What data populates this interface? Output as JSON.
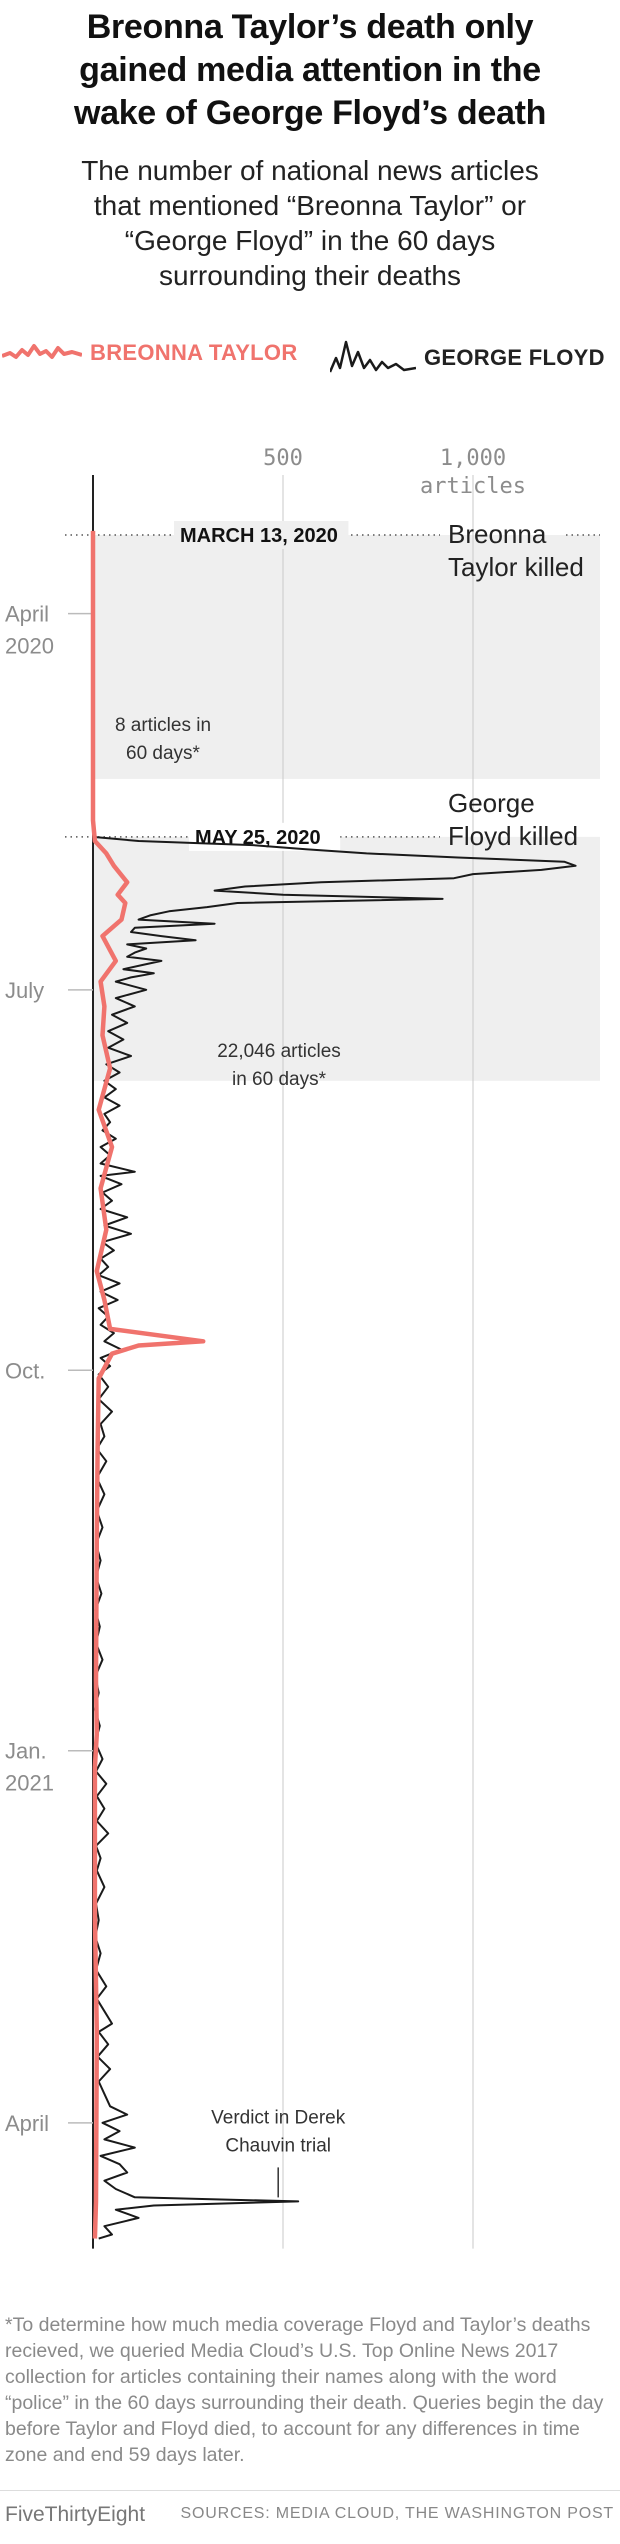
{
  "header": {
    "title_lines": [
      "Breonna Taylor’s death only",
      "gained media attention in the",
      "wake of George Floyd’s death"
    ],
    "subtitle_lines": [
      "The number of national news articles",
      "that mentioned “Breonna Taylor” or",
      "“George Floyd” in the 60 days",
      "surrounding their deaths"
    ]
  },
  "legend": {
    "taylor": "BREONNA TAYLOR",
    "floyd": "GEORGE FLOYD"
  },
  "colors": {
    "taylor": "#f0736d",
    "floyd": "#1a1a1a",
    "shade": "#efefef",
    "grid": "#c8c8c8",
    "axis_text": "#8c8c8c"
  },
  "chart_data": {
    "type": "line",
    "orientation": "vertical-time",
    "x_axis": {
      "label": "articles",
      "ticks": [
        500,
        1000
      ],
      "tick_labels": [
        "500",
        "1,000"
      ],
      "range": [
        0,
        1000
      ]
    },
    "y_axis": {
      "range": [
        "2020-03-13",
        "2021-04-29"
      ],
      "tick_dates": [
        "2020-04-01",
        "2020-07-01",
        "2020-10-01",
        "2021-01-01",
        "2021-04-01"
      ],
      "tick_labels": [
        [
          "April",
          "2020"
        ],
        [
          "July"
        ],
        [
          "Oct."
        ],
        [
          "Jan.",
          "2021"
        ],
        [
          "April"
        ]
      ]
    },
    "events": [
      {
        "date": "2020-03-13",
        "label": "MARCH 13, 2020",
        "note": [
          "Breonna",
          "Taylor killed"
        ],
        "window_end": "2020-05-11",
        "total": [
          "8 articles in",
          "60 days*"
        ]
      },
      {
        "date": "2020-05-25",
        "label": "MAY 25, 2020",
        "note": [
          "George",
          "Floyd killed"
        ],
        "window_end": "2020-07-23",
        "total": [
          "22,046 articles",
          "in 60 days*"
        ]
      }
    ],
    "annotation": {
      "date": "2021-04-20",
      "text": [
        "Verdict in Derek",
        "Chauvin trial"
      ]
    },
    "series": [
      {
        "name": "BREONNA TAYLOR",
        "points": [
          [
            "2020-03-12",
            0
          ],
          [
            "2020-05-21",
            0
          ],
          [
            "2020-05-26",
            5
          ],
          [
            "2020-05-29",
            35
          ],
          [
            "2020-06-01",
            55
          ],
          [
            "2020-06-05",
            90
          ],
          [
            "2020-06-08",
            65
          ],
          [
            "2020-06-10",
            85
          ],
          [
            "2020-06-14",
            75
          ],
          [
            "2020-06-18",
            25
          ],
          [
            "2020-06-24",
            60
          ],
          [
            "2020-06-29",
            20
          ],
          [
            "2020-07-05",
            30
          ],
          [
            "2020-07-12",
            25
          ],
          [
            "2020-07-20",
            45
          ],
          [
            "2020-07-30",
            15
          ],
          [
            "2020-08-08",
            50
          ],
          [
            "2020-08-18",
            20
          ],
          [
            "2020-08-28",
            35
          ],
          [
            "2020-09-07",
            10
          ],
          [
            "2020-09-14",
            30
          ],
          [
            "2020-09-21",
            45
          ],
          [
            "2020-09-24",
            290
          ],
          [
            "2020-09-25",
            120
          ],
          [
            "2020-09-27",
            50
          ],
          [
            "2020-10-03",
            15
          ],
          [
            "2020-10-20",
            12
          ],
          [
            "2020-11-10",
            10
          ],
          [
            "2020-12-15",
            8
          ],
          [
            "2020-12-28",
            10
          ],
          [
            "2021-01-05",
            5
          ],
          [
            "2021-02-10",
            5
          ],
          [
            "2021-03-10",
            10
          ],
          [
            "2021-04-20",
            8
          ],
          [
            "2021-04-29",
            5
          ]
        ]
      },
      {
        "name": "GEORGE FLOYD",
        "points": [
          [
            "2020-03-12",
            0
          ],
          [
            "2020-05-25",
            0
          ],
          [
            "2020-05-26",
            120
          ],
          [
            "2020-05-27",
            420
          ],
          [
            "2020-05-28",
            560
          ],
          [
            "2020-05-29",
            720
          ],
          [
            "2020-05-30",
            960
          ],
          [
            "2020-05-31",
            1240
          ],
          [
            "2020-06-01",
            1270
          ],
          [
            "2020-06-02",
            1180
          ],
          [
            "2020-06-03",
            1000
          ],
          [
            "2020-06-04",
            950
          ],
          [
            "2020-06-05",
            600
          ],
          [
            "2020-06-06",
            400
          ],
          [
            "2020-06-07",
            320
          ],
          [
            "2020-06-08",
            500
          ],
          [
            "2020-06-09",
            920
          ],
          [
            "2020-06-10",
            380
          ],
          [
            "2020-06-11",
            300
          ],
          [
            "2020-06-12",
            200
          ],
          [
            "2020-06-13",
            150
          ],
          [
            "2020-06-14",
            120
          ],
          [
            "2020-06-15",
            320
          ],
          [
            "2020-06-16",
            110
          ],
          [
            "2020-06-17",
            100
          ],
          [
            "2020-06-18",
            180
          ],
          [
            "2020-06-19",
            270
          ],
          [
            "2020-06-20",
            90
          ],
          [
            "2020-06-21",
            140
          ],
          [
            "2020-06-22",
            110
          ],
          [
            "2020-06-23",
            90
          ],
          [
            "2020-06-24",
            180
          ],
          [
            "2020-06-25",
            130
          ],
          [
            "2020-06-26",
            80
          ],
          [
            "2020-06-27",
            160
          ],
          [
            "2020-06-28",
            100
          ],
          [
            "2020-06-29",
            60
          ],
          [
            "2020-07-01",
            140
          ],
          [
            "2020-07-03",
            60
          ],
          [
            "2020-07-05",
            110
          ],
          [
            "2020-07-07",
            50
          ],
          [
            "2020-07-09",
            90
          ],
          [
            "2020-07-11",
            40
          ],
          [
            "2020-07-13",
            80
          ],
          [
            "2020-07-15",
            40
          ],
          [
            "2020-07-17",
            100
          ],
          [
            "2020-07-19",
            35
          ],
          [
            "2020-07-21",
            70
          ],
          [
            "2020-07-23",
            30
          ],
          [
            "2020-07-25",
            60
          ],
          [
            "2020-07-27",
            30
          ],
          [
            "2020-07-29",
            70
          ],
          [
            "2020-07-31",
            30
          ],
          [
            "2020-08-02",
            45
          ],
          [
            "2020-08-04",
            25
          ],
          [
            "2020-08-06",
            60
          ],
          [
            "2020-08-08",
            20
          ],
          [
            "2020-08-10",
            45
          ],
          [
            "2020-08-12",
            20
          ],
          [
            "2020-08-14",
            110
          ],
          [
            "2020-08-15",
            20
          ],
          [
            "2020-08-17",
            75
          ],
          [
            "2020-08-19",
            25
          ],
          [
            "2020-08-21",
            50
          ],
          [
            "2020-08-23",
            20
          ],
          [
            "2020-08-25",
            90
          ],
          [
            "2020-08-27",
            30
          ],
          [
            "2020-08-29",
            100
          ],
          [
            "2020-08-31",
            25
          ],
          [
            "2020-09-02",
            55
          ],
          [
            "2020-09-04",
            20
          ],
          [
            "2020-09-06",
            40
          ],
          [
            "2020-09-08",
            15
          ],
          [
            "2020-09-10",
            70
          ],
          [
            "2020-09-12",
            20
          ],
          [
            "2020-09-14",
            65
          ],
          [
            "2020-09-16",
            15
          ],
          [
            "2020-09-18",
            40
          ],
          [
            "2020-09-20",
            20
          ],
          [
            "2020-09-22",
            55
          ],
          [
            "2020-09-24",
            30
          ],
          [
            "2020-09-26",
            75
          ],
          [
            "2020-09-28",
            20
          ],
          [
            "2020-09-30",
            45
          ],
          [
            "2020-10-02",
            15
          ],
          [
            "2020-10-05",
            40
          ],
          [
            "2020-10-08",
            15
          ],
          [
            "2020-10-11",
            50
          ],
          [
            "2020-10-14",
            20
          ],
          [
            "2020-10-17",
            30
          ],
          [
            "2020-10-20",
            10
          ],
          [
            "2020-10-23",
            35
          ],
          [
            "2020-10-27",
            10
          ],
          [
            "2020-10-31",
            30
          ],
          [
            "2020-11-04",
            10
          ],
          [
            "2020-11-08",
            25
          ],
          [
            "2020-11-12",
            8
          ],
          [
            "2020-11-16",
            20
          ],
          [
            "2020-11-20",
            8
          ],
          [
            "2020-11-24",
            22
          ],
          [
            "2020-11-28",
            6
          ],
          [
            "2020-12-02",
            18
          ],
          [
            "2020-12-06",
            8
          ],
          [
            "2020-12-10",
            25
          ],
          [
            "2020-12-14",
            6
          ],
          [
            "2020-12-18",
            15
          ],
          [
            "2020-12-22",
            5
          ],
          [
            "2020-12-26",
            18
          ],
          [
            "2020-12-30",
            6
          ],
          [
            "2021-01-03",
            25
          ],
          [
            "2021-01-06",
            8
          ],
          [
            "2021-01-09",
            35
          ],
          [
            "2021-01-12",
            10
          ],
          [
            "2021-01-15",
            30
          ],
          [
            "2021-01-18",
            10
          ],
          [
            "2021-01-21",
            40
          ],
          [
            "2021-01-24",
            8
          ],
          [
            "2021-01-27",
            20
          ],
          [
            "2021-01-30",
            10
          ],
          [
            "2021-02-03",
            30
          ],
          [
            "2021-02-07",
            8
          ],
          [
            "2021-02-11",
            15
          ],
          [
            "2021-02-15",
            6
          ],
          [
            "2021-02-19",
            20
          ],
          [
            "2021-02-23",
            8
          ],
          [
            "2021-02-27",
            35
          ],
          [
            "2021-03-02",
            10
          ],
          [
            "2021-03-05",
            30
          ],
          [
            "2021-03-08",
            50
          ],
          [
            "2021-03-10",
            15
          ],
          [
            "2021-03-13",
            40
          ],
          [
            "2021-03-16",
            12
          ],
          [
            "2021-03-19",
            45
          ],
          [
            "2021-03-22",
            15
          ],
          [
            "2021-03-25",
            30
          ],
          [
            "2021-03-28",
            45
          ],
          [
            "2021-03-30",
            90
          ],
          [
            "2021-04-01",
            25
          ],
          [
            "2021-04-03",
            70
          ],
          [
            "2021-04-05",
            30
          ],
          [
            "2021-04-07",
            110
          ],
          [
            "2021-04-09",
            20
          ],
          [
            "2021-04-11",
            70
          ],
          [
            "2021-04-13",
            90
          ],
          [
            "2021-04-15",
            30
          ],
          [
            "2021-04-17",
            60
          ],
          [
            "2021-04-19",
            110
          ],
          [
            "2021-04-20",
            540
          ],
          [
            "2021-04-21",
            160
          ],
          [
            "2021-04-22",
            60
          ],
          [
            "2021-04-24",
            120
          ],
          [
            "2021-04-26",
            30
          ],
          [
            "2021-04-28",
            50
          ],
          [
            "2021-04-29",
            15
          ]
        ]
      }
    ]
  },
  "footnote": "*To determine how much media coverage Floyd and Taylor’s deaths recieved, we queried Media Cloud’s U.S. Top Online News 2017 collection for articles containing their names along with the word “police” in the 60 days surrounding their death. Queries begin the day before Taylor and Floyd died, to account for any differences in time zone and end 59 days later.",
  "footer": {
    "brand": "FiveThirtyEight",
    "sources": "SOURCES: MEDIA CLOUD, THE WASHINGTON POST"
  }
}
